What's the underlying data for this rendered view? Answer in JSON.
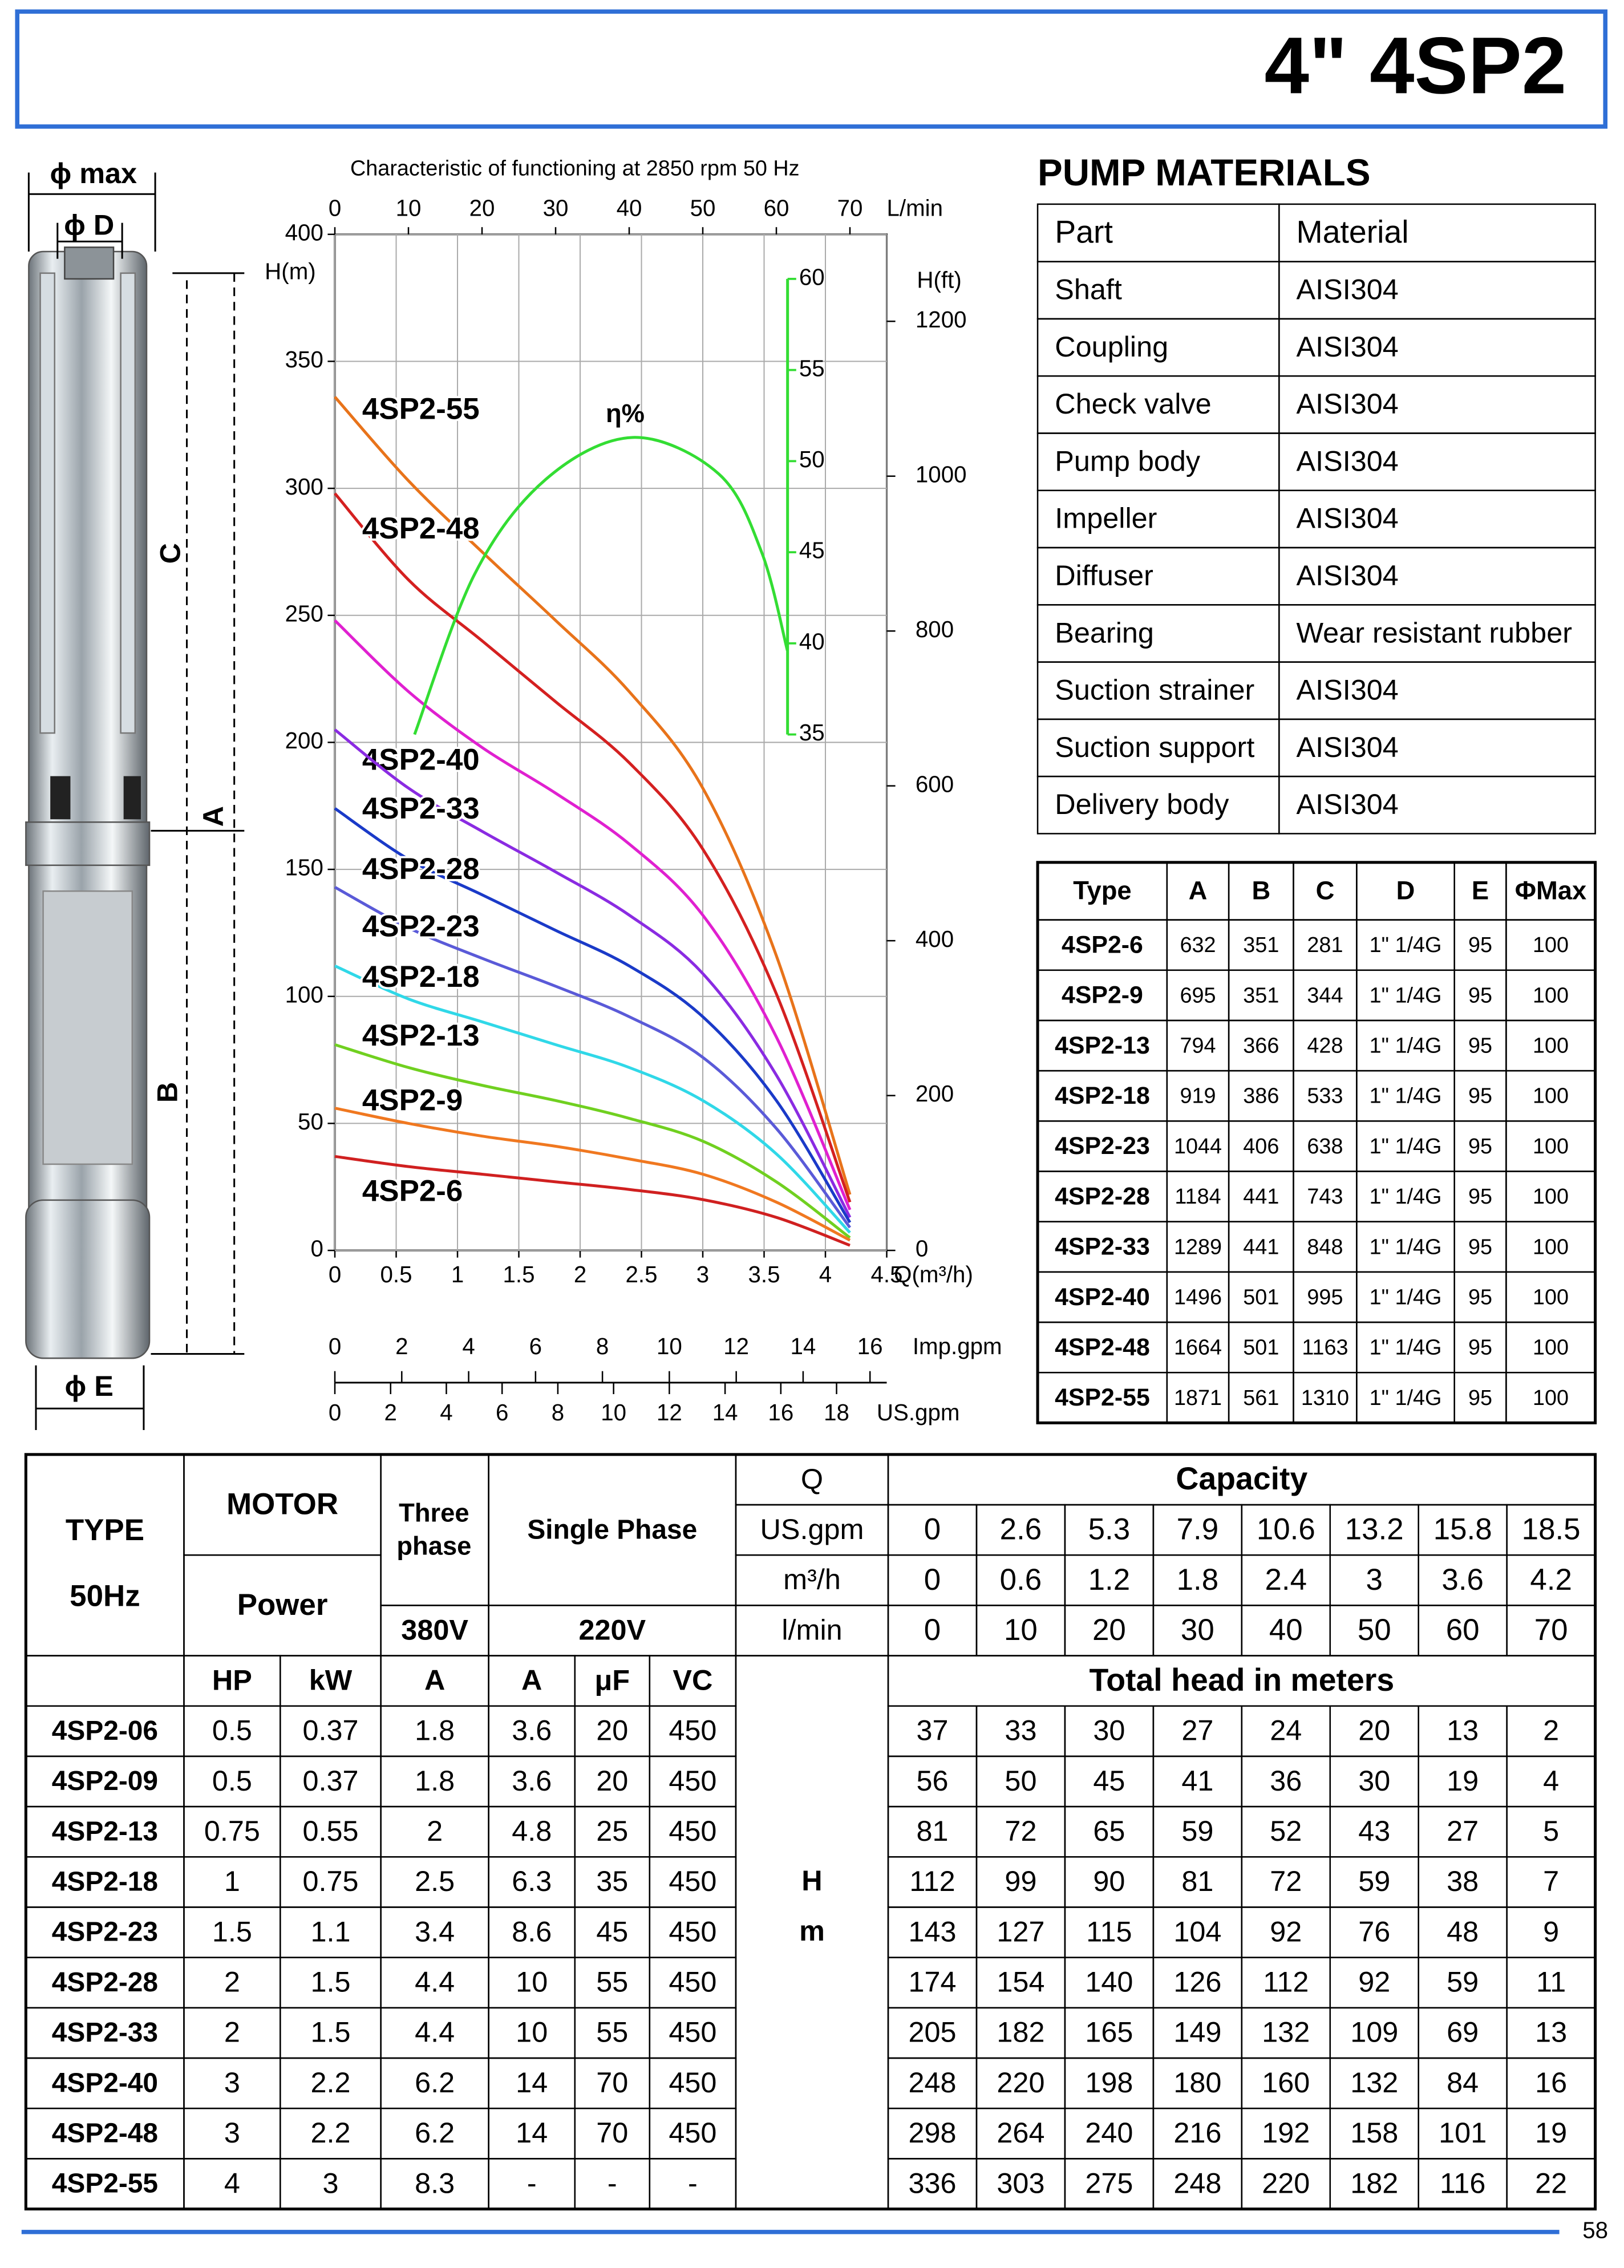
{
  "header": {
    "title": "4\"  4SP2"
  },
  "dimension_drawing": {
    "phi_max": "ϕ max",
    "phi_d": "ϕ D",
    "c": "C",
    "a": "A",
    "b": "B",
    "phi_e": "ϕ E"
  },
  "chart_data": {
    "type": "line",
    "title": "Characteristic of  functioning at 2850 rpm 50 Hz",
    "x_label": "Q(m³/h)",
    "y_label": "H(m)",
    "y2_label": "η%",
    "xlim": [
      0,
      4.5
    ],
    "xticks": [
      0,
      0.5,
      1,
      1.5,
      2,
      2.5,
      3,
      3.5,
      4,
      4.5
    ],
    "ylim": [
      0,
      400
    ],
    "yticks": [
      0,
      50,
      100,
      150,
      200,
      250,
      300,
      350,
      400
    ],
    "y2lim": [
      35,
      60
    ],
    "y2ticks": [
      35,
      40,
      45,
      50,
      55,
      60
    ],
    "grid": true,
    "top_axis": {
      "label": "L/min",
      "lim": [
        0,
        75
      ],
      "ticks": [
        0,
        10,
        20,
        30,
        40,
        50,
        60,
        70
      ]
    },
    "right_axis": {
      "label": "H(ft)",
      "lim": [
        0,
        1312.34
      ],
      "ticks": [
        0,
        200,
        400,
        600,
        800,
        1000,
        1200
      ]
    },
    "imp_axis": {
      "label": "Imp.gpm",
      "lim": [
        0,
        16.5
      ],
      "ticks": [
        0,
        2,
        4,
        6,
        8,
        10,
        12,
        14,
        16
      ]
    },
    "us_axis": {
      "label": "US.gpm",
      "lim": [
        0,
        19.8
      ],
      "ticks": [
        0,
        2,
        4,
        6,
        8,
        10,
        12,
        14,
        16,
        18
      ]
    },
    "x": [
      0,
      0.6,
      1.2,
      1.8,
      2.4,
      3,
      3.6,
      4.2
    ],
    "series": [
      {
        "name": "4SP2-55",
        "color": "#e8731a",
        "values": [
          336,
          303,
          275,
          248,
          220,
          182,
          116,
          22
        ]
      },
      {
        "name": "4SP2-48",
        "color": "#d42020",
        "values": [
          298,
          264,
          240,
          216,
          192,
          158,
          101,
          19
        ]
      },
      {
        "name": "4SP2-40",
        "color": "#e020d0",
        "values": [
          248,
          220,
          198,
          180,
          160,
          132,
          84,
          16
        ]
      },
      {
        "name": "4SP2-33",
        "color": "#8a2be2",
        "values": [
          205,
          182,
          165,
          149,
          132,
          109,
          69,
          13
        ]
      },
      {
        "name": "4SP2-28",
        "color": "#1a3ac8",
        "values": [
          174,
          154,
          140,
          126,
          112,
          92,
          59,
          11
        ]
      },
      {
        "name": "4SP2-23",
        "color": "#5a5ad8",
        "values": [
          143,
          127,
          115,
          104,
          92,
          76,
          48,
          9
        ]
      },
      {
        "name": "4SP2-18",
        "color": "#30d8e8",
        "values": [
          112,
          99,
          90,
          81,
          72,
          59,
          38,
          7
        ]
      },
      {
        "name": "4SP2-13",
        "color": "#70d020",
        "values": [
          81,
          72,
          65,
          59,
          52,
          43,
          27,
          5
        ]
      },
      {
        "name": "4SP2-9",
        "color": "#f07820",
        "values": [
          56,
          50,
          45,
          41,
          36,
          30,
          19,
          4
        ]
      },
      {
        "name": "4SP2-6",
        "color": "#d02020",
        "values": [
          37,
          33,
          30,
          27,
          24,
          20,
          13,
          2
        ]
      },
      {
        "name": "η%",
        "color": "#33dd33",
        "axis": "y2",
        "x": [
          0.65,
          1.14,
          1.72,
          2.43,
          3.13,
          3.48,
          3.69
        ],
        "values": [
          35,
          43.8,
          49,
          51.3,
          49.3,
          45,
          39.6
        ]
      }
    ]
  },
  "materials": {
    "title": "PUMP MATERIALS",
    "header": [
      "Part",
      "Material"
    ],
    "rows": [
      [
        "Shaft",
        "AISI304"
      ],
      [
        "Coupling",
        "AISI304"
      ],
      [
        "Check valve",
        "AISI304"
      ],
      [
        "Pump body",
        "AISI304"
      ],
      [
        "Impeller",
        "AISI304"
      ],
      [
        "Diffuser",
        "AISI304"
      ],
      [
        "Bearing",
        "Wear resistant rubber"
      ],
      [
        "Suction strainer",
        "AISI304"
      ],
      [
        "Suction support",
        "AISI304"
      ],
      [
        "Delivery body",
        "AISI304"
      ]
    ]
  },
  "dimensions_table": {
    "header": [
      "Type",
      "A",
      "B",
      "C",
      "D",
      "E",
      "ΦMax"
    ],
    "rows": [
      [
        "4SP2-6",
        "632",
        "351",
        "281",
        "1\" 1/4G",
        "95",
        "100"
      ],
      [
        "4SP2-9",
        "695",
        "351",
        "344",
        "1\" 1/4G",
        "95",
        "100"
      ],
      [
        "4SP2-13",
        "794",
        "366",
        "428",
        "1\" 1/4G",
        "95",
        "100"
      ],
      [
        "4SP2-18",
        "919",
        "386",
        "533",
        "1\" 1/4G",
        "95",
        "100"
      ],
      [
        "4SP2-23",
        "1044",
        "406",
        "638",
        "1\" 1/4G",
        "95",
        "100"
      ],
      [
        "4SP2-28",
        "1184",
        "441",
        "743",
        "1\" 1/4G",
        "95",
        "100"
      ],
      [
        "4SP2-33",
        "1289",
        "441",
        "848",
        "1\" 1/4G",
        "95",
        "100"
      ],
      [
        "4SP2-40",
        "1496",
        "501",
        "995",
        "1\" 1/4G",
        "95",
        "100"
      ],
      [
        "4SP2-48",
        "1664",
        "501",
        "1163",
        "1\" 1/4G",
        "95",
        "100"
      ],
      [
        "4SP2-55",
        "1871",
        "561",
        "1310",
        "1\" 1/4G",
        "95",
        "100"
      ]
    ]
  },
  "performance_table": {
    "header": {
      "type": "TYPE",
      "freq": "50Hz",
      "motor": "MOTOR",
      "power": "Power",
      "three_phase": [
        "Three",
        "phase"
      ],
      "single_phase": "Single Phase",
      "v380": "380V",
      "v220": "220V",
      "q": "Q",
      "capacity": "Capacity",
      "units": [
        "US.gpm",
        "m³/h",
        "l/min"
      ],
      "capacity_rows": [
        [
          "0",
          "2.6",
          "5.3",
          "7.9",
          "10.6",
          "13.2",
          "15.8",
          "18.5"
        ],
        [
          "0",
          "0.6",
          "1.2",
          "1.8",
          "2.4",
          "3",
          "3.6",
          "4.2"
        ],
        [
          "0",
          "10",
          "20",
          "30",
          "40",
          "50",
          "60",
          "70"
        ]
      ],
      "columns": [
        "HP",
        "kW",
        "A",
        "A",
        "μF",
        "VC"
      ],
      "head_unit": [
        "H",
        "m"
      ],
      "total_head": "Total head in meters"
    },
    "rows": [
      {
        "type": "4SP2-06",
        "motor": [
          "0.5",
          "0.37",
          "1.8",
          "3.6",
          "20",
          "450"
        ],
        "head": [
          "37",
          "33",
          "30",
          "27",
          "24",
          "20",
          "13",
          "2"
        ]
      },
      {
        "type": "4SP2-09",
        "motor": [
          "0.5",
          "0.37",
          "1.8",
          "3.6",
          "20",
          "450"
        ],
        "head": [
          "56",
          "50",
          "45",
          "41",
          "36",
          "30",
          "19",
          "4"
        ]
      },
      {
        "type": "4SP2-13",
        "motor": [
          "0.75",
          "0.55",
          "2",
          "4.8",
          "25",
          "450"
        ],
        "head": [
          "81",
          "72",
          "65",
          "59",
          "52",
          "43",
          "27",
          "5"
        ]
      },
      {
        "type": "4SP2-18",
        "motor": [
          "1",
          "0.75",
          "2.5",
          "6.3",
          "35",
          "450"
        ],
        "head": [
          "112",
          "99",
          "90",
          "81",
          "72",
          "59",
          "38",
          "7"
        ]
      },
      {
        "type": "4SP2-23",
        "motor": [
          "1.5",
          "1.1",
          "3.4",
          "8.6",
          "45",
          "450"
        ],
        "head": [
          "143",
          "127",
          "115",
          "104",
          "92",
          "76",
          "48",
          "9"
        ]
      },
      {
        "type": "4SP2-28",
        "motor": [
          "2",
          "1.5",
          "4.4",
          "10",
          "55",
          "450"
        ],
        "head": [
          "174",
          "154",
          "140",
          "126",
          "112",
          "92",
          "59",
          "11"
        ]
      },
      {
        "type": "4SP2-33",
        "motor": [
          "2",
          "1.5",
          "4.4",
          "10",
          "55",
          "450"
        ],
        "head": [
          "205",
          "182",
          "165",
          "149",
          "132",
          "109",
          "69",
          "13"
        ]
      },
      {
        "type": "4SP2-40",
        "motor": [
          "3",
          "2.2",
          "6.2",
          "14",
          "70",
          "450"
        ],
        "head": [
          "248",
          "220",
          "198",
          "180",
          "160",
          "132",
          "84",
          "16"
        ]
      },
      {
        "type": "4SP2-48",
        "motor": [
          "3",
          "2.2",
          "6.2",
          "14",
          "70",
          "450"
        ],
        "head": [
          "298",
          "264",
          "240",
          "216",
          "192",
          "158",
          "101",
          "19"
        ]
      },
      {
        "type": "4SP2-55",
        "motor": [
          "4",
          "3",
          "8.3",
          "-",
          "-",
          "-"
        ],
        "head": [
          "336",
          "303",
          "275",
          "248",
          "220",
          "182",
          "116",
          "22"
        ]
      }
    ]
  },
  "footer": {
    "page": "58"
  }
}
